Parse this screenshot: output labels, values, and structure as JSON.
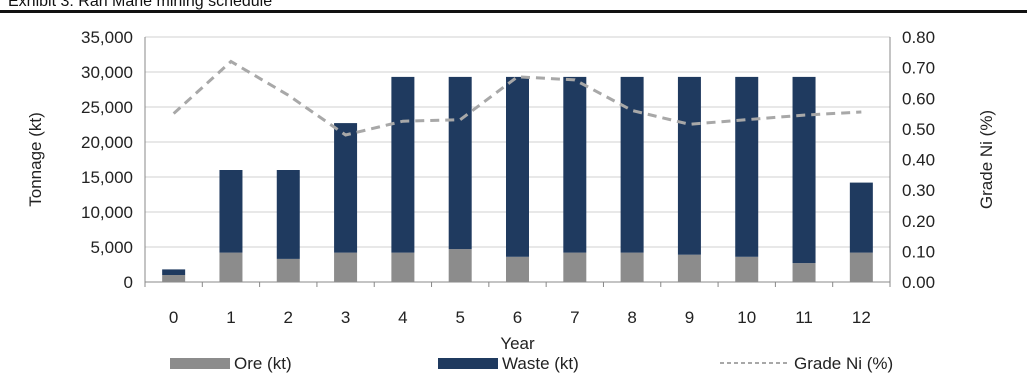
{
  "exhibit_title": "Exhibit 3: Ran Marie mining schedule",
  "chart_data": {
    "type": "bar",
    "stacked": true,
    "categories": [
      "0",
      "1",
      "2",
      "3",
      "4",
      "5",
      "6",
      "7",
      "8",
      "9",
      "10",
      "11",
      "12"
    ],
    "xlabel": "Year",
    "ylabel": "Tonnage (kt)",
    "y2label": "Grade Ni (%)",
    "ylim": [
      0,
      35000
    ],
    "y2lim": [
      0,
      0.8
    ],
    "yticks": [
      "0",
      "5,000",
      "10,000",
      "15,000",
      "20,000",
      "25,000",
      "30,000",
      "35,000"
    ],
    "y2ticks": [
      "0.00",
      "0.10",
      "0.20",
      "0.30",
      "0.40",
      "0.50",
      "0.60",
      "0.70",
      "0.80"
    ],
    "grid": true,
    "legend_position": "bottom",
    "series": [
      {
        "name": "Ore (kt)",
        "kind": "bar",
        "axis": "left",
        "color": "#8c8c8c",
        "values": [
          1000,
          4200,
          3300,
          4200,
          4200,
          4700,
          3600,
          4200,
          4200,
          3900,
          3600,
          2700,
          4200
        ]
      },
      {
        "name": "Waste (kt)",
        "kind": "bar",
        "axis": "left",
        "color": "#1f3a5f",
        "values": [
          800,
          11800,
          12700,
          18500,
          25100,
          24600,
          25700,
          25100,
          25100,
          25400,
          25700,
          26600,
          10000
        ]
      },
      {
        "name": "Grade Ni (%)",
        "kind": "line",
        "axis": "right",
        "color": "#a8a8a8",
        "dashed": true,
        "values": [
          0.55,
          0.72,
          0.61,
          0.48,
          0.525,
          0.53,
          0.67,
          0.66,
          0.56,
          0.515,
          0.53,
          0.545,
          0.555
        ]
      }
    ]
  }
}
